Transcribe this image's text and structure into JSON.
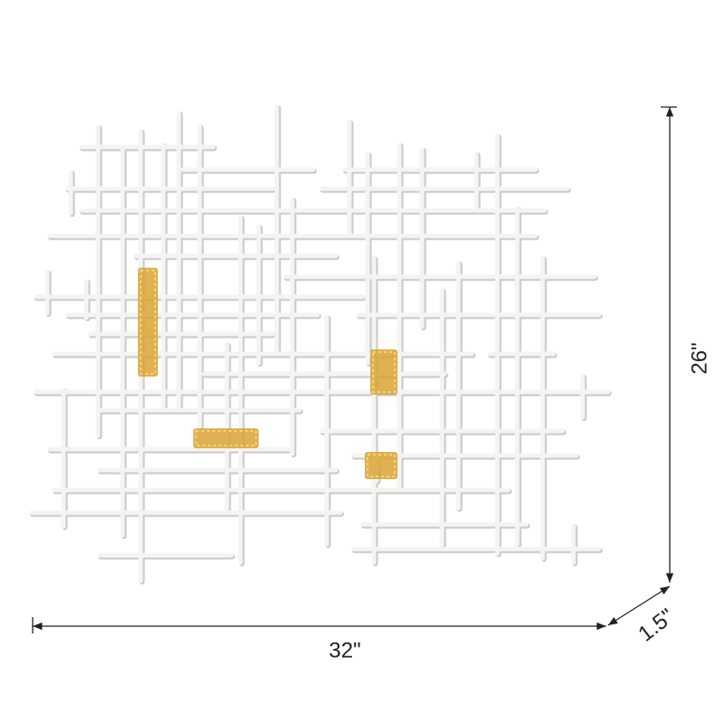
{
  "dimensions": {
    "height": "26\"",
    "width": "32\"",
    "depth": "1.5\""
  }
}
